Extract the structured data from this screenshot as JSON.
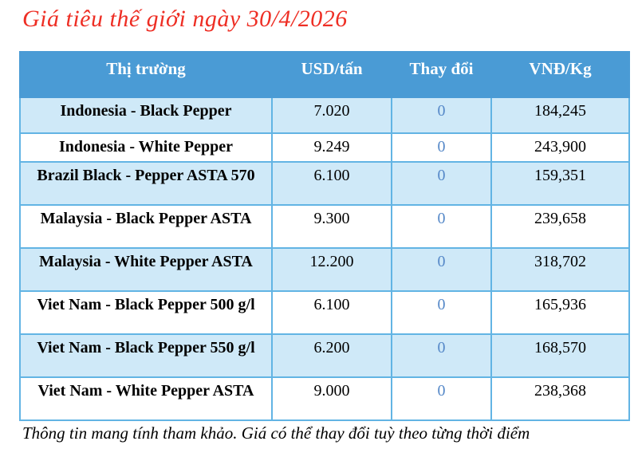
{
  "page": {
    "title": "Giá tiêu thế giới ngày 30/4/2026",
    "footer": "Thông tin mang tính tham khảo. Giá có thể thay đổi tuỳ theo từng thời điểm"
  },
  "table": {
    "headers": [
      "Thị trường",
      "USD/tấn",
      "Thay đổi",
      "VNĐ/Kg"
    ],
    "rows": [
      {
        "market": "Indonesia - Black Pepper",
        "usd": "7.020",
        "change": "0",
        "vnd": "184,245"
      },
      {
        "market": "Indonesia - White Pepper",
        "usd": "9.249",
        "change": "0",
        "vnd": "243,900"
      },
      {
        "market": "Brazil Black - Pepper ASTA 570",
        "usd": "6.100",
        "change": "0",
        "vnd": "159,351"
      },
      {
        "market": "Malaysia - Black Pepper ASTA",
        "usd": "9.300",
        "change": "0",
        "vnd": "239,658"
      },
      {
        "market": "Malaysia - White Pepper ASTA",
        "usd": "12.200",
        "change": "0",
        "vnd": "318,702"
      },
      {
        "market": "Viet Nam - Black Pepper 500 g/l",
        "usd": "6.100",
        "change": "0",
        "vnd": "165,936"
      },
      {
        "market": "Viet Nam - Black Pepper 550 g/l",
        "usd": "6.200",
        "change": "0",
        "vnd": "168,570"
      },
      {
        "market": "Viet Nam - White Pepper ASTA",
        "usd": "9.000",
        "change": "0",
        "vnd": "238,368"
      }
    ]
  },
  "colors": {
    "header_blue": "#4a9bd5",
    "row_alt_blue": "#cfe9f8",
    "border_blue": "#62b4e4",
    "change_zero_blue": "#5588c8",
    "title_red": "#ee2e24",
    "text_black": "#000000"
  }
}
